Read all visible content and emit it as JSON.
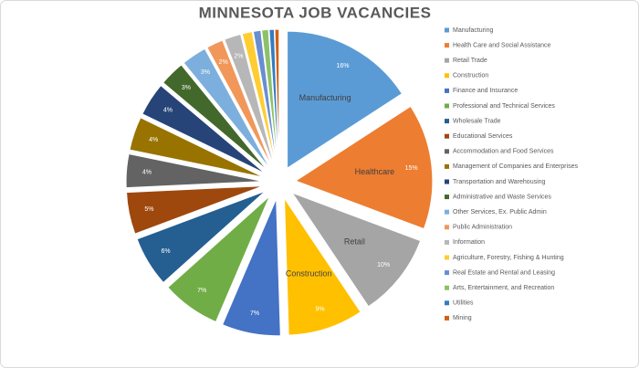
{
  "chart_data": {
    "type": "pie",
    "title": "MINNESOTA JOB VACANCIES",
    "categories": [
      "Manufacturing",
      "Health Care and Social Assistance",
      "Retail Trade",
      "Construction",
      "Finance and Insurance",
      "Professional and Technical Services",
      "Wholesale Trade",
      "Educational Services",
      "Accommodation and Food Services",
      "Management of Companies and Enterprises",
      "Transportation and Warehousing",
      "Administrative and Waste Services",
      "Other Services, Ex. Public Admin",
      "Public Administration",
      "Information",
      "Agriculture, Forestry, Fishing & Hunting",
      "Real Estate and Rental and Leasing",
      "Arts, Entertainment, and Recreation",
      "Utilities",
      "Mining"
    ],
    "values": [
      16,
      15,
      10,
      9,
      7,
      7,
      6,
      5,
      4,
      4,
      4,
      3,
      3,
      2,
      2,
      1.2,
      0.9,
      0.8,
      0.6,
      0.5
    ],
    "value_labels": [
      "16%",
      "15%",
      "10%",
      "9%",
      "7%",
      "7%",
      "6%",
      "5%",
      "4%",
      "4%",
      "4%",
      "3%",
      "3%",
      "2%",
      "2%",
      null,
      null,
      null,
      null,
      null
    ],
    "slice_labels": [
      "Manufacturing",
      "Healthcare",
      "Retail",
      "Construction",
      null,
      null,
      null,
      null,
      null,
      null,
      null,
      null,
      null,
      null,
      null,
      null,
      null,
      null,
      null,
      null
    ],
    "colors": [
      "#5b9bd5",
      "#ed7d31",
      "#a5a5a5",
      "#ffc000",
      "#4472c4",
      "#70ad47",
      "#255e91",
      "#9e480e",
      "#636363",
      "#997300",
      "#264478",
      "#43682b",
      "#7cafdd",
      "#f1975a",
      "#b7b7b7",
      "#ffcd33",
      "#698ed0",
      "#8cc168",
      "#327dc2",
      "#d26012"
    ],
    "legend": "right"
  }
}
